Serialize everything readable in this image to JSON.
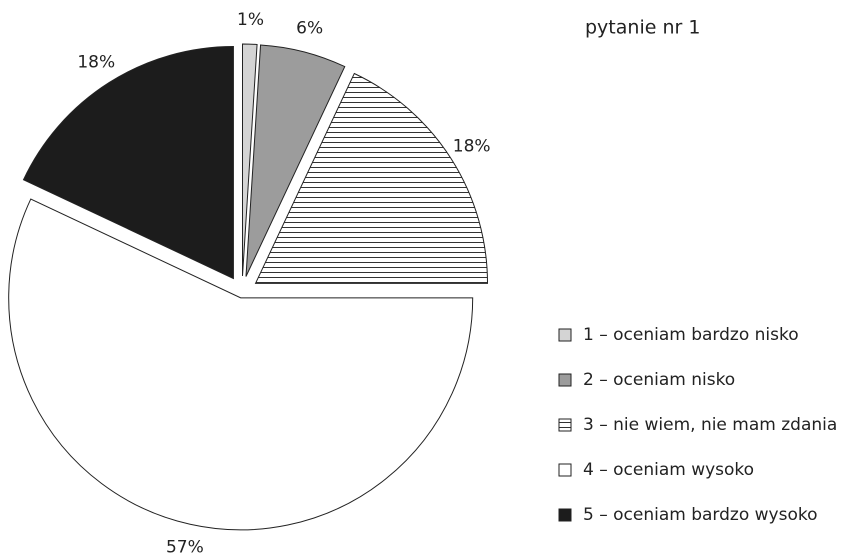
{
  "chart_data": {
    "type": "pie",
    "title": "pytanie nr 1",
    "categories": [
      "1 – oceniam bardzo nisko",
      "2 – oceniam nisko",
      "3 – nie wiem, nie mam zdania",
      "4 – oceniam wysoko",
      "5 – oceniam bardzo wysoko"
    ],
    "values": [
      1,
      6,
      18,
      57,
      18
    ],
    "value_labels": [
      "1%",
      "6%",
      "18%",
      "57%",
      "18%"
    ],
    "colors": [
      "#d4d4d4",
      "#9c9c9c",
      "hatch",
      "#ffffff",
      "#1c1c1c"
    ],
    "legend": "right"
  }
}
